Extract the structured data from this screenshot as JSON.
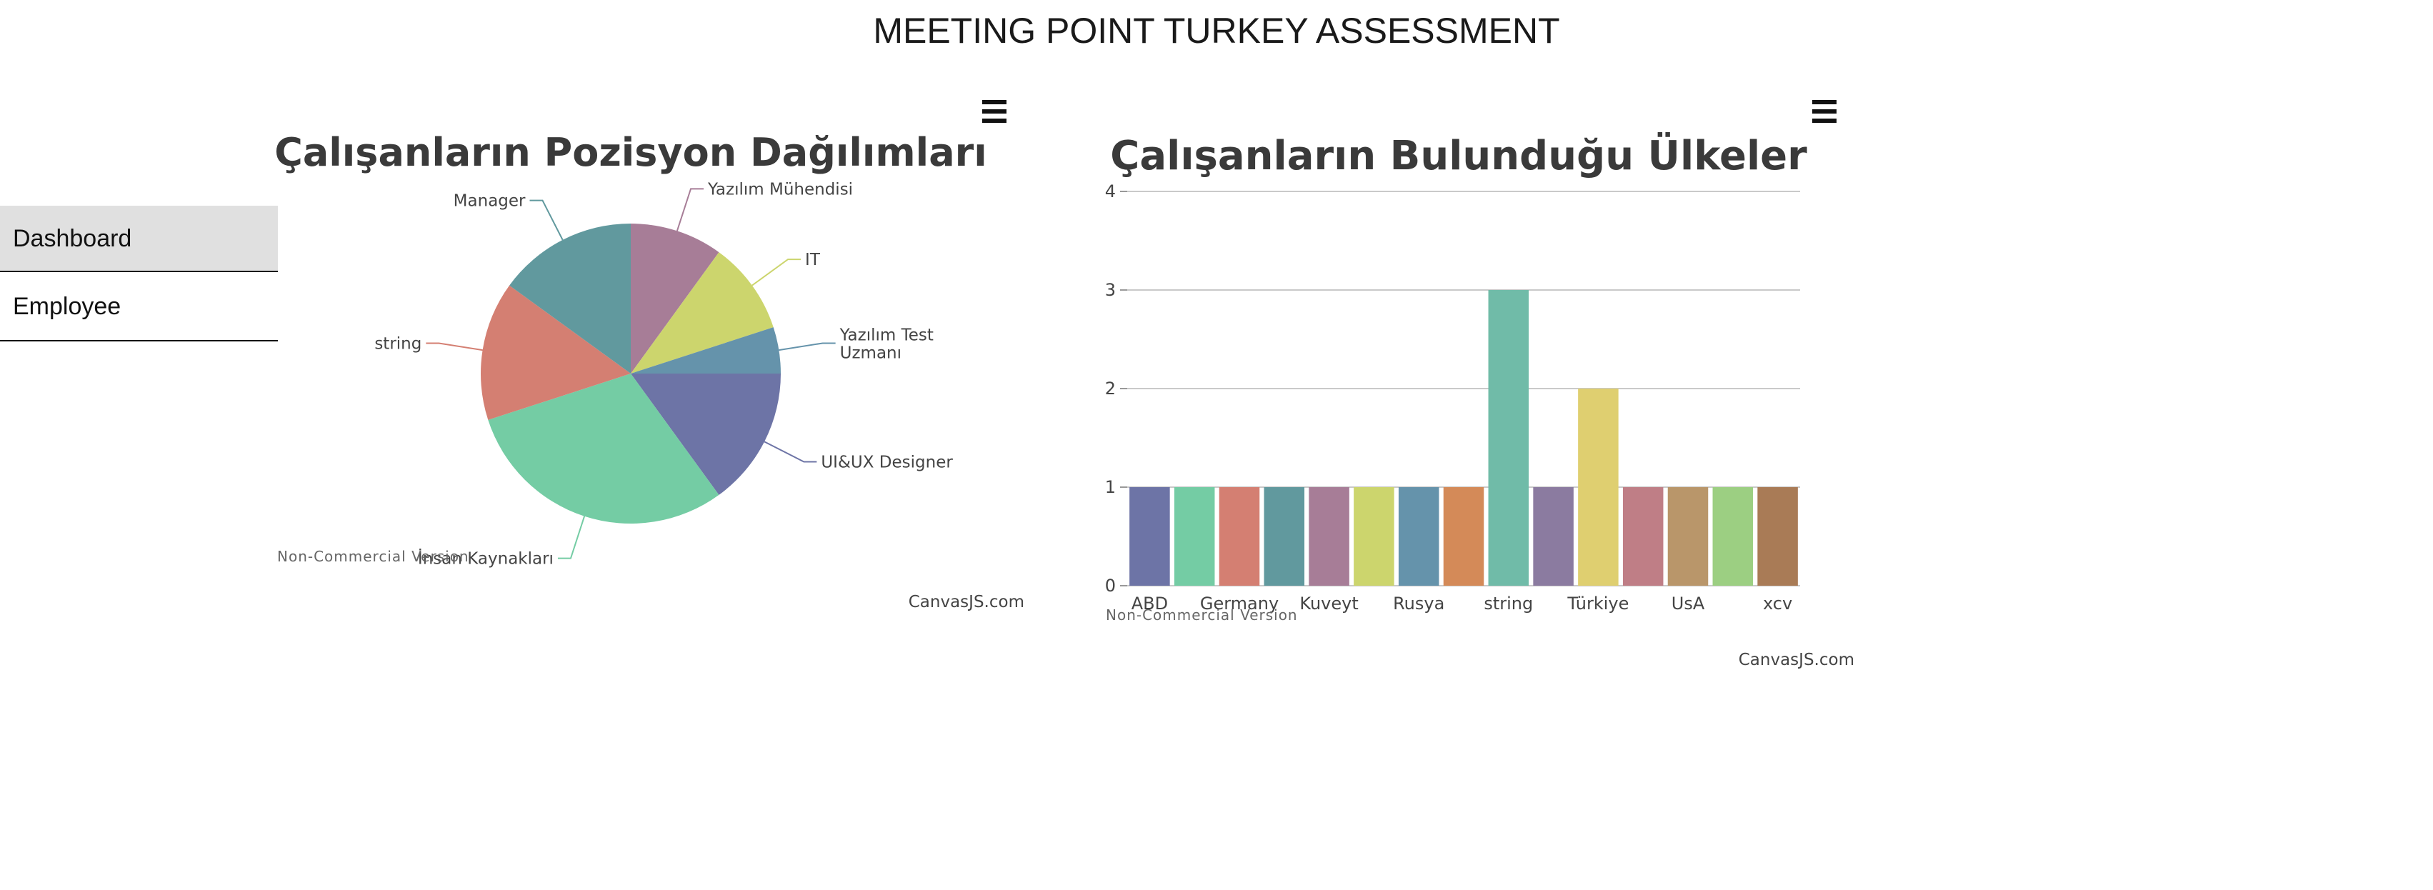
{
  "header": {
    "title": "MEETING POINT TURKEY ASSESSMENT"
  },
  "sidebar": {
    "items": [
      {
        "label": "Dashboard",
        "active": true
      },
      {
        "label": "Employee",
        "active": false
      }
    ]
  },
  "chart_data": [
    {
      "type": "pie",
      "title": "Çalışanların Pozisyon Dağılımları",
      "slices": [
        {
          "label": "Yazılım Mühendisi",
          "value": 10,
          "color": "#a77d97"
        },
        {
          "label": "IT",
          "value": 10,
          "color": "#ccd56d"
        },
        {
          "label": "Yazılım Test Uzmanı",
          "value": 5,
          "color": "#6593ab"
        },
        {
          "label": "UI&UX Designer",
          "value": 15,
          "color": "#6d74a6"
        },
        {
          "label": "İnsan Kaynakları",
          "value": 30,
          "color": "#74cca4"
        },
        {
          "label": "string",
          "value": 15,
          "color": "#d47f72"
        },
        {
          "label": "Manager",
          "value": 15,
          "color": "#61999e"
        }
      ],
      "watermark": "Non-Commercial Version",
      "credit": "CanvasJS.com",
      "menu_icon": "hamburger-icon"
    },
    {
      "type": "bar",
      "title": "Çalışanların Bulunduğu Ülkeler",
      "ylim": [
        0,
        4
      ],
      "yticks": [
        "0",
        "1",
        "2",
        "3",
        "4"
      ],
      "grid": true,
      "visible_xticks": [
        "ABD",
        "Germany",
        "Kuveyt",
        "Rusya",
        "string",
        "Türkiye",
        "UsA",
        "xcv"
      ],
      "values": [
        1,
        1,
        1,
        1,
        1,
        1,
        1,
        1,
        3,
        1,
        2,
        1,
        1,
        1,
        1
      ],
      "colors": [
        "#6d74a6",
        "#74cca4",
        "#d47f72",
        "#61999e",
        "#a77d97",
        "#ccd56d",
        "#6593ab",
        "#d48a58",
        "#70bba8",
        "#8b7ba0",
        "#dfcf70",
        "#bf7e86",
        "#b9966a",
        "#9ccf82",
        "#a97b56"
      ],
      "watermark": "Non-Commercial Version",
      "credit": "CanvasJS.com",
      "menu_icon": "hamburger-icon"
    }
  ]
}
